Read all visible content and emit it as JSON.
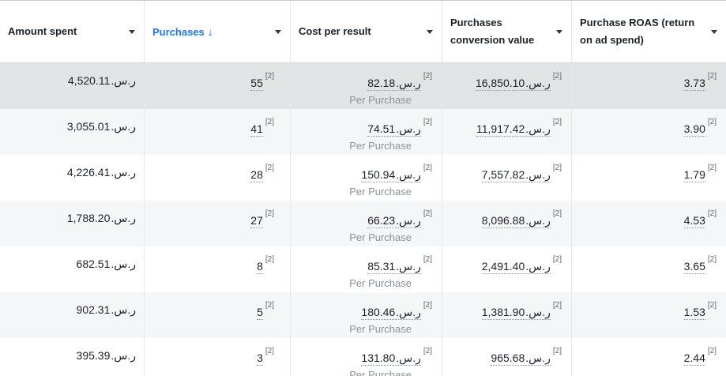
{
  "table": {
    "currency_display": "ر.س.",
    "footnote_ref": "[2]",
    "per_result_label": "Per Purchase",
    "columns": [
      {
        "label": "Amount spent",
        "sorted": false
      },
      {
        "label": "Purchases",
        "sorted": true,
        "sort_arrow": "↓"
      },
      {
        "label": "Cost per result",
        "sorted": false
      },
      {
        "label": "Purchases conversion value",
        "sorted": false
      },
      {
        "label": "Purchase ROAS (return on ad spend)",
        "sorted": false
      }
    ],
    "rows": [
      {
        "amount_spent": "4,520.11",
        "purchases": "55",
        "cost_per_result": "82.18",
        "conversion_value": "16,850.10",
        "roas": "3.73",
        "highlighted": true
      },
      {
        "amount_spent": "3,055.01",
        "purchases": "41",
        "cost_per_result": "74.51",
        "conversion_value": "11,917.42",
        "roas": "3.90",
        "highlighted": false
      },
      {
        "amount_spent": "4,226.41",
        "purchases": "28",
        "cost_per_result": "150.94",
        "conversion_value": "7,557.82",
        "roas": "1.79",
        "highlighted": false
      },
      {
        "amount_spent": "1,788.20",
        "purchases": "27",
        "cost_per_result": "66.23",
        "conversion_value": "8,096.88",
        "roas": "4.53",
        "highlighted": false
      },
      {
        "amount_spent": "682.51",
        "purchases": "8",
        "cost_per_result": "85.31",
        "conversion_value": "2,491.40",
        "roas": "3.65",
        "highlighted": false
      },
      {
        "amount_spent": "902.31",
        "purchases": "5",
        "cost_per_result": "180.46",
        "conversion_value": "1,381.90",
        "roas": "1.53",
        "highlighted": false
      },
      {
        "amount_spent": "395.39",
        "purchases": "3",
        "cost_per_result": "131.80",
        "conversion_value": "965.68",
        "roas": "2.44",
        "highlighted": false
      }
    ],
    "colors": {
      "accent_blue": "#1877f2",
      "hover_row": "#e2e3e4",
      "stripe_row": "#f5f6f7",
      "divider": "#e5e6e9",
      "muted_text": "#8c9196"
    }
  }
}
